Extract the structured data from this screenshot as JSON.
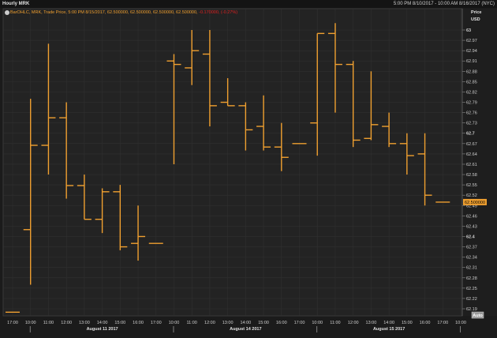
{
  "header": {
    "title": "Hourly MRK",
    "date_range": "5:00 PM 8/10/2017 - 10:00 AM 8/16/2017 (NYC)"
  },
  "legend": {
    "text": "BarOHLC, MRK, Trade Price, 5:00 PM 8/15/2017, 62.500000, 62.500000, 62.500000, 62.500000,",
    "change": "-0.170000, (-0.27%)"
  },
  "price_axis": {
    "title": "Price",
    "unit": "USD",
    "auto_label": "Auto"
  },
  "colors": {
    "bar": "#f0a030",
    "change_negative": "#e02020",
    "background": "#232323",
    "grid": "#303030"
  },
  "chart_data": {
    "type": "ohlc",
    "title": "Hourly MRK",
    "ylabel": "Price USD",
    "ylim": [
      62.18,
      63.03
    ],
    "y_ticks": [
      "63",
      "62.97",
      "62.94",
      "62.91",
      "62.88",
      "62.85",
      "62.82",
      "62.79",
      "62.76",
      "62.73",
      "62.7",
      "62.67",
      "62.64",
      "62.61",
      "62.58",
      "62.55",
      "62.52",
      "62.49",
      "62.46",
      "62.43",
      "62.4",
      "62.37",
      "62.34",
      "62.31",
      "62.28",
      "62.25",
      "62.22",
      "62.19"
    ],
    "bold_ticks": [
      "63",
      "62.7",
      "62.4"
    ],
    "x_ticks": [
      "17:00",
      "10:00",
      "11:00",
      "12:00",
      "13:00",
      "14:00",
      "15:00",
      "16:00",
      "17:00",
      "10:00",
      "11:00",
      "12:00",
      "13:00",
      "14:00",
      "15:00",
      "16:00",
      "17:00",
      "10:00",
      "11:00",
      "12:00",
      "13:00",
      "14:00",
      "15:00",
      "16:00",
      "17:00",
      "10:00"
    ],
    "date_labels": [
      "August 11 2017",
      "August 14 2017",
      "August 15 2017"
    ],
    "last_price_label": "62.500000",
    "last_price": 62.5,
    "grid": true,
    "bars": [
      {
        "t": "17:00",
        "o": 62.18,
        "h": 62.18,
        "l": 62.18,
        "c": 62.18
      },
      {
        "t": "10:00",
        "o": 62.42,
        "h": 62.8,
        "l": 62.26,
        "c": 62.665
      },
      {
        "t": "11:00",
        "o": 62.665,
        "h": 62.96,
        "l": 62.58,
        "c": 62.745
      },
      {
        "t": "12:00",
        "o": 62.745,
        "h": 62.79,
        "l": 62.51,
        "c": 62.548
      },
      {
        "t": "13:00",
        "o": 62.548,
        "h": 62.58,
        "l": 62.45,
        "c": 62.45
      },
      {
        "t": "14:00",
        "o": 62.45,
        "h": 62.54,
        "l": 62.41,
        "c": 62.53
      },
      {
        "t": "15:00",
        "o": 62.53,
        "h": 62.55,
        "l": 62.36,
        "c": 62.37
      },
      {
        "t": "16:00",
        "o": 62.38,
        "h": 62.49,
        "l": 62.33,
        "c": 62.4
      },
      {
        "t": "17:00",
        "o": 62.38,
        "h": 62.38,
        "l": 62.38,
        "c": 62.38
      },
      {
        "t": "10:00",
        "o": 62.91,
        "h": 62.93,
        "l": 62.61,
        "c": 62.9
      },
      {
        "t": "11:00",
        "o": 62.89,
        "h": 63.0,
        "l": 62.84,
        "c": 62.94
      },
      {
        "t": "12:00",
        "o": 62.93,
        "h": 63.0,
        "l": 62.72,
        "c": 62.78
      },
      {
        "t": "13:00",
        "o": 62.79,
        "h": 62.86,
        "l": 62.78,
        "c": 62.78
      },
      {
        "t": "14:00",
        "o": 62.78,
        "h": 62.79,
        "l": 62.65,
        "c": 62.71
      },
      {
        "t": "15:00",
        "o": 62.72,
        "h": 62.81,
        "l": 62.65,
        "c": 62.66
      },
      {
        "t": "16:00",
        "o": 62.66,
        "h": 62.73,
        "l": 62.59,
        "c": 62.63
      },
      {
        "t": "17:00",
        "o": 62.67,
        "h": 62.67,
        "l": 62.67,
        "c": 62.67
      },
      {
        "t": "10:00",
        "o": 62.73,
        "h": 62.99,
        "l": 62.635,
        "c": 62.99
      },
      {
        "t": "11:00",
        "o": 62.99,
        "h": 63.02,
        "l": 62.76,
        "c": 62.9
      },
      {
        "t": "12:00",
        "o": 62.9,
        "h": 62.91,
        "l": 62.66,
        "c": 62.68
      },
      {
        "t": "13:00",
        "o": 62.685,
        "h": 62.88,
        "l": 62.68,
        "c": 62.725
      },
      {
        "t": "14:00",
        "o": 62.72,
        "h": 62.76,
        "l": 62.66,
        "c": 62.67
      },
      {
        "t": "15:00",
        "o": 62.67,
        "h": 62.7,
        "l": 62.58,
        "c": 62.635
      },
      {
        "t": "16:00",
        "o": 62.64,
        "h": 62.7,
        "l": 62.49,
        "c": 62.52
      },
      {
        "t": "17:00",
        "o": 62.5,
        "h": 62.5,
        "l": 62.5,
        "c": 62.5
      }
    ]
  }
}
